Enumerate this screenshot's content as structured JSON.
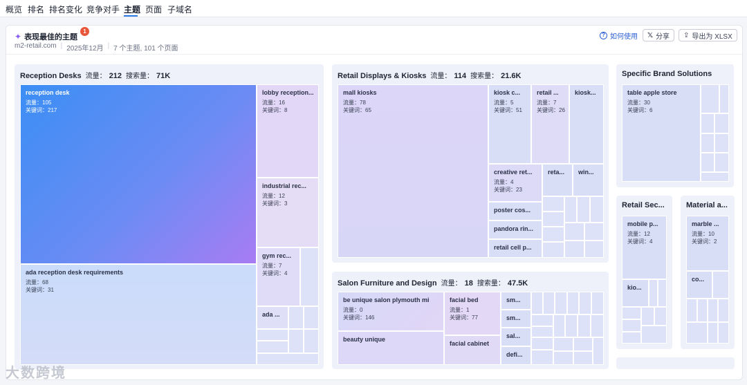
{
  "nav": {
    "tabs": [
      "概览",
      "排名",
      "排名变化",
      "竞争对手",
      "主题",
      "页面",
      "子域名"
    ]
  },
  "header": {
    "title": "表现最佳的主题",
    "badge": "1",
    "domain": "m2-retail.com",
    "date": "2025年12月",
    "summary": "7 个主题, 101 个页面",
    "help": "如何使用",
    "share": "分享",
    "export": "导出为 XLSX"
  },
  "labels": {
    "traffic": "流量：",
    "volume": "搜索量：",
    "traffic_short": "流量：",
    "keywords": "关键词："
  },
  "topics": {
    "reception": {
      "name": "Reception Desks",
      "traffic": "212",
      "volume": "71K",
      "items": [
        {
          "name": "reception desk",
          "traffic": "105",
          "keywords": "217"
        },
        {
          "name": "ada reception desk requirements",
          "traffic": "68",
          "keywords": "31"
        },
        {
          "name": "lobby reception...",
          "traffic": "16",
          "keywords": "8"
        },
        {
          "name": "industrial rec...",
          "traffic": "12",
          "keywords": "3"
        },
        {
          "name": "gym rec...",
          "traffic": "7",
          "keywords": "4"
        },
        {
          "name": "ada ..."
        }
      ]
    },
    "retail": {
      "name": "Retail Displays & Kiosks",
      "traffic": "114",
      "volume": "21.6K",
      "items": [
        {
          "name": "mall kiosks",
          "traffic": "78",
          "keywords": "65"
        },
        {
          "name": "kiosk c...",
          "traffic": "5",
          "keywords": "51"
        },
        {
          "name": "retail ...",
          "traffic": "7",
          "keywords": "26"
        },
        {
          "name": "kiosk..."
        },
        {
          "name": "creative ret...",
          "traffic": "4",
          "keywords": "23"
        },
        {
          "name": "reta..."
        },
        {
          "name": "win..."
        },
        {
          "name": "poster cos..."
        },
        {
          "name": "pandora rin..."
        },
        {
          "name": "retail cell p..."
        }
      ]
    },
    "salon": {
      "name": "Salon Furniture and Design",
      "traffic": "18",
      "volume": "47.5K",
      "items": [
        {
          "name": "be unique salon plymouth mi",
          "traffic": "0",
          "keywords": "146"
        },
        {
          "name": "facial bed",
          "traffic": "1",
          "keywords": "77"
        },
        {
          "name": "beauty unique"
        },
        {
          "name": "facial cabinet"
        },
        {
          "name": "sm..."
        },
        {
          "name": "sm..."
        },
        {
          "name": "sal..."
        },
        {
          "name": "defi..."
        }
      ]
    },
    "brand": {
      "name": "Specific Brand Solutions",
      "items": [
        {
          "name": "table apple store",
          "traffic": "30",
          "keywords": "6"
        }
      ]
    },
    "security": {
      "name": "Retail Sec...",
      "items": [
        {
          "name": "mobile p...",
          "traffic": "12",
          "keywords": "4"
        },
        {
          "name": "kio..."
        }
      ]
    },
    "material": {
      "name": "Material a...",
      "items": [
        {
          "name": "marble ...",
          "traffic": "10",
          "keywords": "2"
        },
        {
          "name": "co..."
        }
      ]
    }
  },
  "watermark": "大数跨境",
  "colors": {
    "accent": "#2c7be5",
    "cell": "#d9def7",
    "big_from": "#3b8ef5",
    "big_to": "#a87cf3"
  }
}
